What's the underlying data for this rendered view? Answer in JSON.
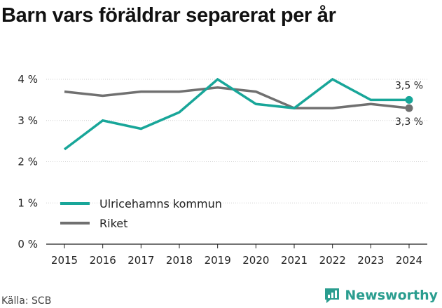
{
  "title": "Barn vars föräldrar separerat per år",
  "source": "Källa: SCB",
  "brand": {
    "name": "Newsworthy",
    "icon": "newsworthy-logo-icon"
  },
  "colors": {
    "primary": "#18a699",
    "secondary": "#707070",
    "grid": "#cfcfcf",
    "axis": "#222222"
  },
  "chart_data": {
    "type": "line",
    "title": "Barn vars föräldrar separerat per år",
    "x": [
      "2015",
      "2016",
      "2017",
      "2018",
      "2019",
      "2020",
      "2021",
      "2022",
      "2023",
      "2024"
    ],
    "y_ticks": [
      0,
      1,
      2,
      3,
      4
    ],
    "y_tick_labels": [
      "0 %",
      "1 %",
      "2 %",
      "3 %",
      "4 %"
    ],
    "ylim": [
      0,
      4
    ],
    "grid": "horizontal",
    "legend_position": "bottom-left",
    "series": [
      {
        "name": "Ulricehamns kommun",
        "color": "#18a699",
        "values": [
          2.3,
          3.0,
          2.8,
          3.2,
          4.0,
          3.4,
          3.3,
          4.0,
          3.5,
          3.5
        ],
        "end_label": "3,5 %"
      },
      {
        "name": "Riket",
        "color": "#707070",
        "values": [
          3.7,
          3.6,
          3.7,
          3.7,
          3.8,
          3.7,
          3.3,
          3.3,
          3.4,
          3.3
        ],
        "end_label": "3,3 %"
      }
    ]
  }
}
